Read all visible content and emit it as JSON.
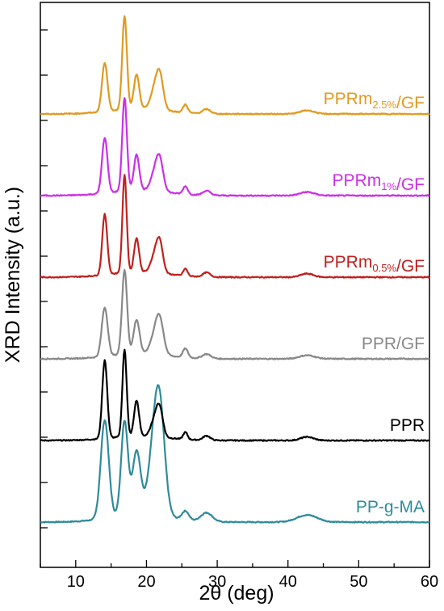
{
  "chart_data": {
    "type": "line",
    "xlabel": "2θ (deg)",
    "ylabel": "XRD Intensity (a.u.)",
    "xlim": [
      5,
      60
    ],
    "xticks": [
      10,
      20,
      30,
      40,
      50,
      60
    ],
    "y_tick_labels_shown": false,
    "grid": false,
    "legend": "inline labels at right of each trace",
    "peaks_common": [
      {
        "x": 14.1,
        "w": 0.35
      },
      {
        "x": 16.9,
        "w": 0.3
      },
      {
        "x": 18.6,
        "w": 0.35
      },
      {
        "x": 21.2,
        "w": 0.55
      },
      {
        "x": 21.9,
        "w": 0.45
      },
      {
        "x": 25.5,
        "w": 0.3
      },
      {
        "x": 28.5,
        "w": 0.5
      },
      {
        "x": 42.7,
        "w": 0.9
      }
    ],
    "series": [
      {
        "name": "PP-g-MA",
        "color": "#2e8b9a",
        "offset": 0,
        "label_parts": [
          {
            "text": "PP-g-MA",
            "sub": ""
          }
        ],
        "heights": [
          1.1,
          1.05,
          0.7,
          0.75,
          0.85,
          0.1,
          0.1,
          0.08
        ],
        "widths_scale": 1.6,
        "hump": 0.1
      },
      {
        "name": "PPR",
        "color": "#000000",
        "offset": 1,
        "label_parts": [
          {
            "text": "PPR",
            "sub": ""
          }
        ],
        "heights": [
          0.88,
          0.98,
          0.4,
          0.2,
          0.27,
          0.08,
          0.05,
          0.04
        ],
        "widths_scale": 1.0,
        "hump": 0.05
      },
      {
        "name": "PPR/GF",
        "color": "#888888",
        "offset": 2,
        "label_parts": [
          {
            "text": "PPR/GF",
            "sub": ""
          }
        ],
        "heights": [
          0.55,
          0.95,
          0.38,
          0.2,
          0.33,
          0.1,
          0.05,
          0.04
        ],
        "widths_scale": 1.2,
        "hump": 0.06
      },
      {
        "name": "PPRm0.5%/GF",
        "color": "#c0201d",
        "offset": 3,
        "label_parts": [
          {
            "text": "PPRm",
            "sub": "0.5%"
          },
          {
            "text": "/GF",
            "sub": ""
          }
        ],
        "heights": [
          0.68,
          1.1,
          0.38,
          0.2,
          0.3,
          0.08,
          0.05,
          0.04
        ],
        "widths_scale": 1.0,
        "hump": 0.06
      },
      {
        "name": "PPRm1%/GF",
        "color": "#cc2ee8",
        "offset": 4,
        "label_parts": [
          {
            "text": "PPRm",
            "sub": "1%"
          },
          {
            "text": "/GF",
            "sub": ""
          }
        ],
        "heights": [
          0.62,
          1.05,
          0.4,
          0.2,
          0.3,
          0.09,
          0.05,
          0.04
        ],
        "widths_scale": 1.1,
        "hump": 0.06
      },
      {
        "name": "PPRm2.5%/GF",
        "color": "#e09a20",
        "offset": 5,
        "label_parts": [
          {
            "text": "PPRm",
            "sub": "2.5%"
          },
          {
            "text": "/GF",
            "sub": ""
          }
        ],
        "heights": [
          0.55,
          1.05,
          0.38,
          0.22,
          0.33,
          0.09,
          0.05,
          0.04
        ],
        "widths_scale": 1.1,
        "hump": 0.06
      }
    ]
  }
}
